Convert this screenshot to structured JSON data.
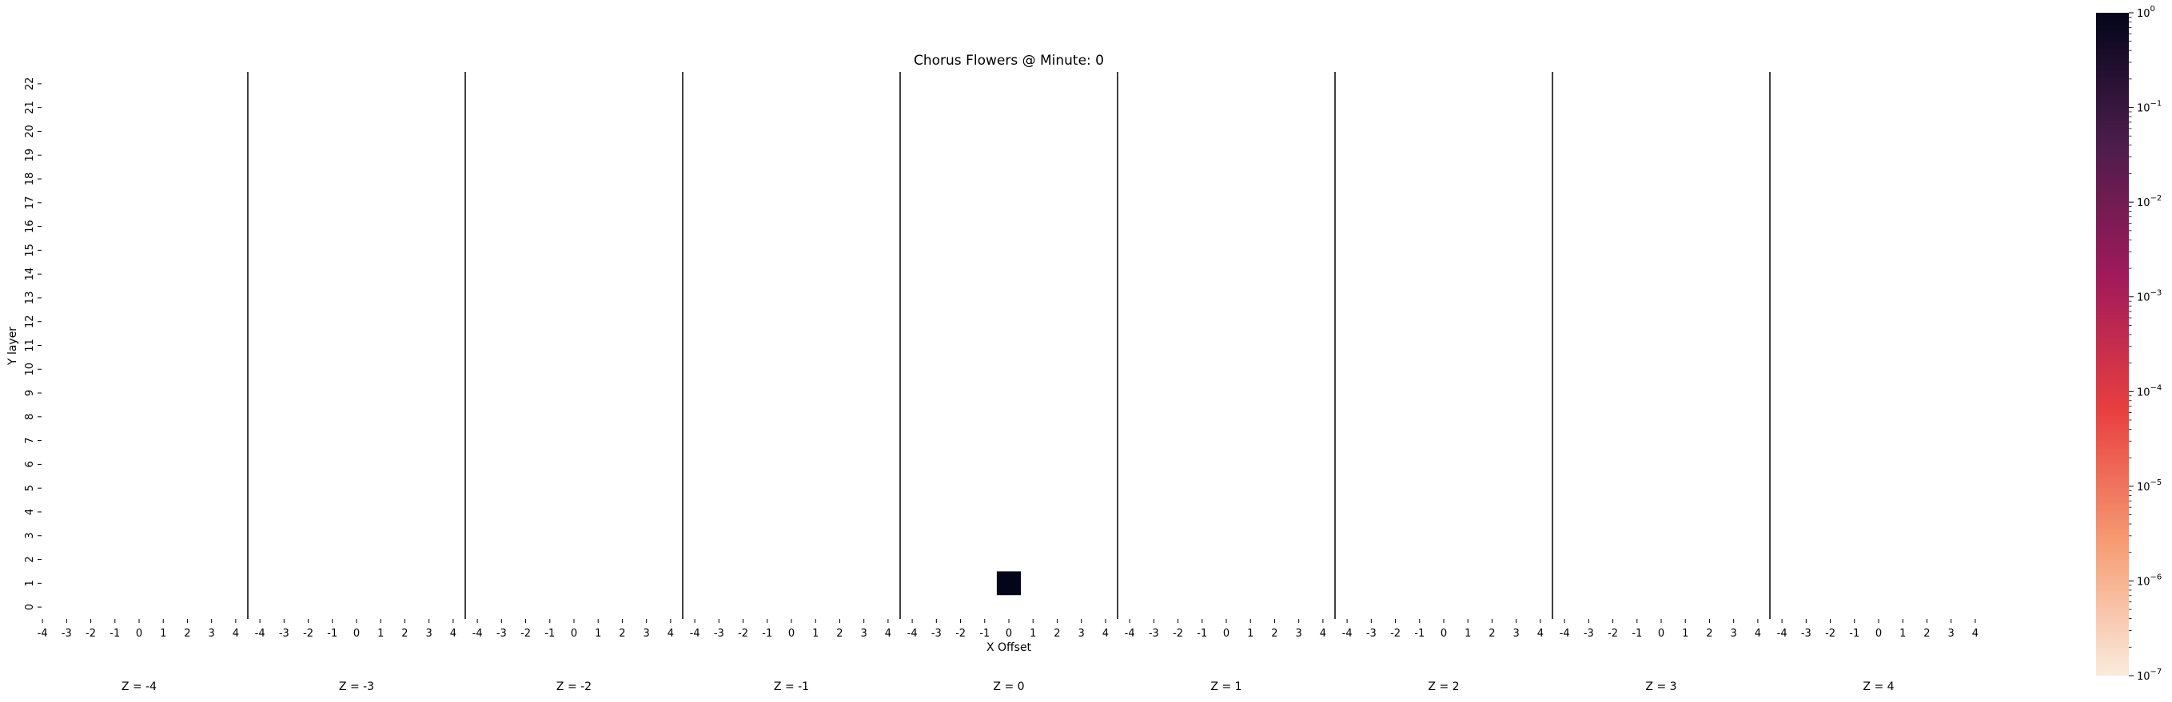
{
  "chart_data": {
    "type": "heatmap",
    "title": "Chorus Flowers @ Minute: 0",
    "xlabel": "X Offset",
    "ylabel": "Y layer",
    "x_ticks": [
      -4,
      -3,
      -2,
      -1,
      0,
      1,
      2,
      3,
      4
    ],
    "y_ticks": [
      0,
      1,
      2,
      3,
      4,
      5,
      6,
      7,
      8,
      9,
      10,
      11,
      12,
      13,
      14,
      15,
      16,
      17,
      18,
      19,
      20,
      21,
      22
    ],
    "panels": [
      {
        "label": "Z = -4",
        "z": -4
      },
      {
        "label": "Z = -3",
        "z": -3
      },
      {
        "label": "Z = -2",
        "z": -2
      },
      {
        "label": "Z = -1",
        "z": -1
      },
      {
        "label": "Z = 0",
        "z": 0
      },
      {
        "label": "Z = 1",
        "z": 1
      },
      {
        "label": "Z = 2",
        "z": 2
      },
      {
        "label": "Z = 3",
        "z": 3
      },
      {
        "label": "Z = 4",
        "z": 4
      }
    ],
    "cells": [
      {
        "z": 0,
        "x": 0,
        "y": 1,
        "value": 1.0
      }
    ],
    "colorbar": {
      "scale": "log",
      "min": 1e-07,
      "max": 1,
      "colormap": "rocket_r",
      "ticks": [
        {
          "base": "10",
          "exp": "0",
          "value": 1
        },
        {
          "base": "10",
          "exp": "−1",
          "value": 0.1
        },
        {
          "base": "10",
          "exp": "−2",
          "value": 0.01
        },
        {
          "base": "10",
          "exp": "−3",
          "value": 0.001
        },
        {
          "base": "10",
          "exp": "−4",
          "value": 0.0001
        },
        {
          "base": "10",
          "exp": "−5",
          "value": 1e-05
        },
        {
          "base": "10",
          "exp": "−6",
          "value": 1e-06
        },
        {
          "base": "10",
          "exp": "−7",
          "value": 1e-07
        }
      ],
      "color_stops": [
        "#03051a",
        "#4c1d4b",
        "#a11a5b",
        "#e83f3f",
        "#f69c73",
        "#faebdd"
      ]
    }
  }
}
